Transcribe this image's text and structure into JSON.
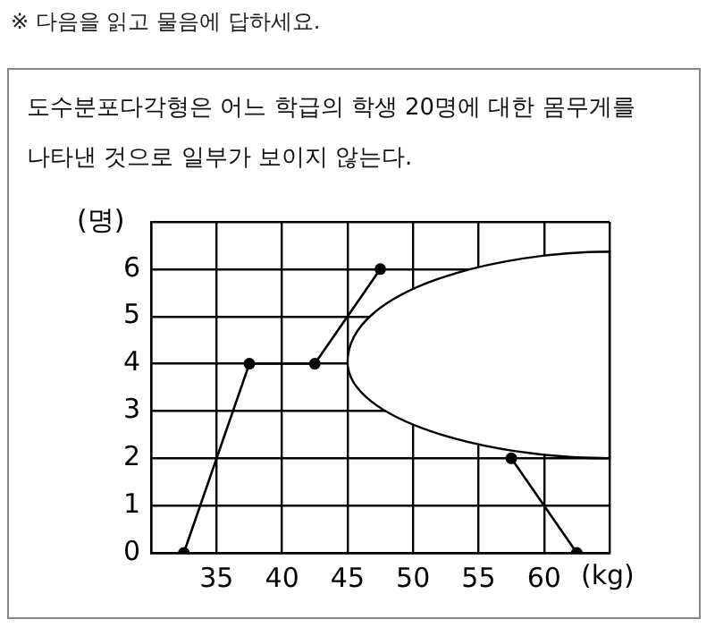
{
  "chart_data": {
    "type": "line",
    "title": "도수분포다각형은 어느 학급의 학생 20명에 대한 몸무게를 나타낸 것으로 일부가 보이지 않는다.",
    "annotations": [
      "※ 다음을 읽고 물음에 답하세요."
    ],
    "xlabel": "(kg)",
    "ylabel": "(명)",
    "x": [
      32.5,
      37.5,
      42.5,
      47.5,
      52.5,
      57.5,
      62.5
    ],
    "series": [
      {
        "color": "#000000",
        "values": [
          0,
          4,
          4,
          6,
          null,
          2,
          0
        ]
      }
    ],
    "xlim": [
      30,
      65
    ],
    "xticks": [
      {
        "value": 30,
        "label": null
      },
      35,
      40,
      45,
      50,
      55,
      60,
      {
        "value": 65,
        "label": null
      }
    ],
    "ylim": [
      0,
      7
    ],
    "yticks": [
      0,
      1,
      2,
      3,
      4,
      5,
      6,
      {
        "value": 7,
        "label": null
      }
    ],
    "grid": true,
    "legend": false,
    "marker": "circle",
    "line_style": "solid"
  }
}
